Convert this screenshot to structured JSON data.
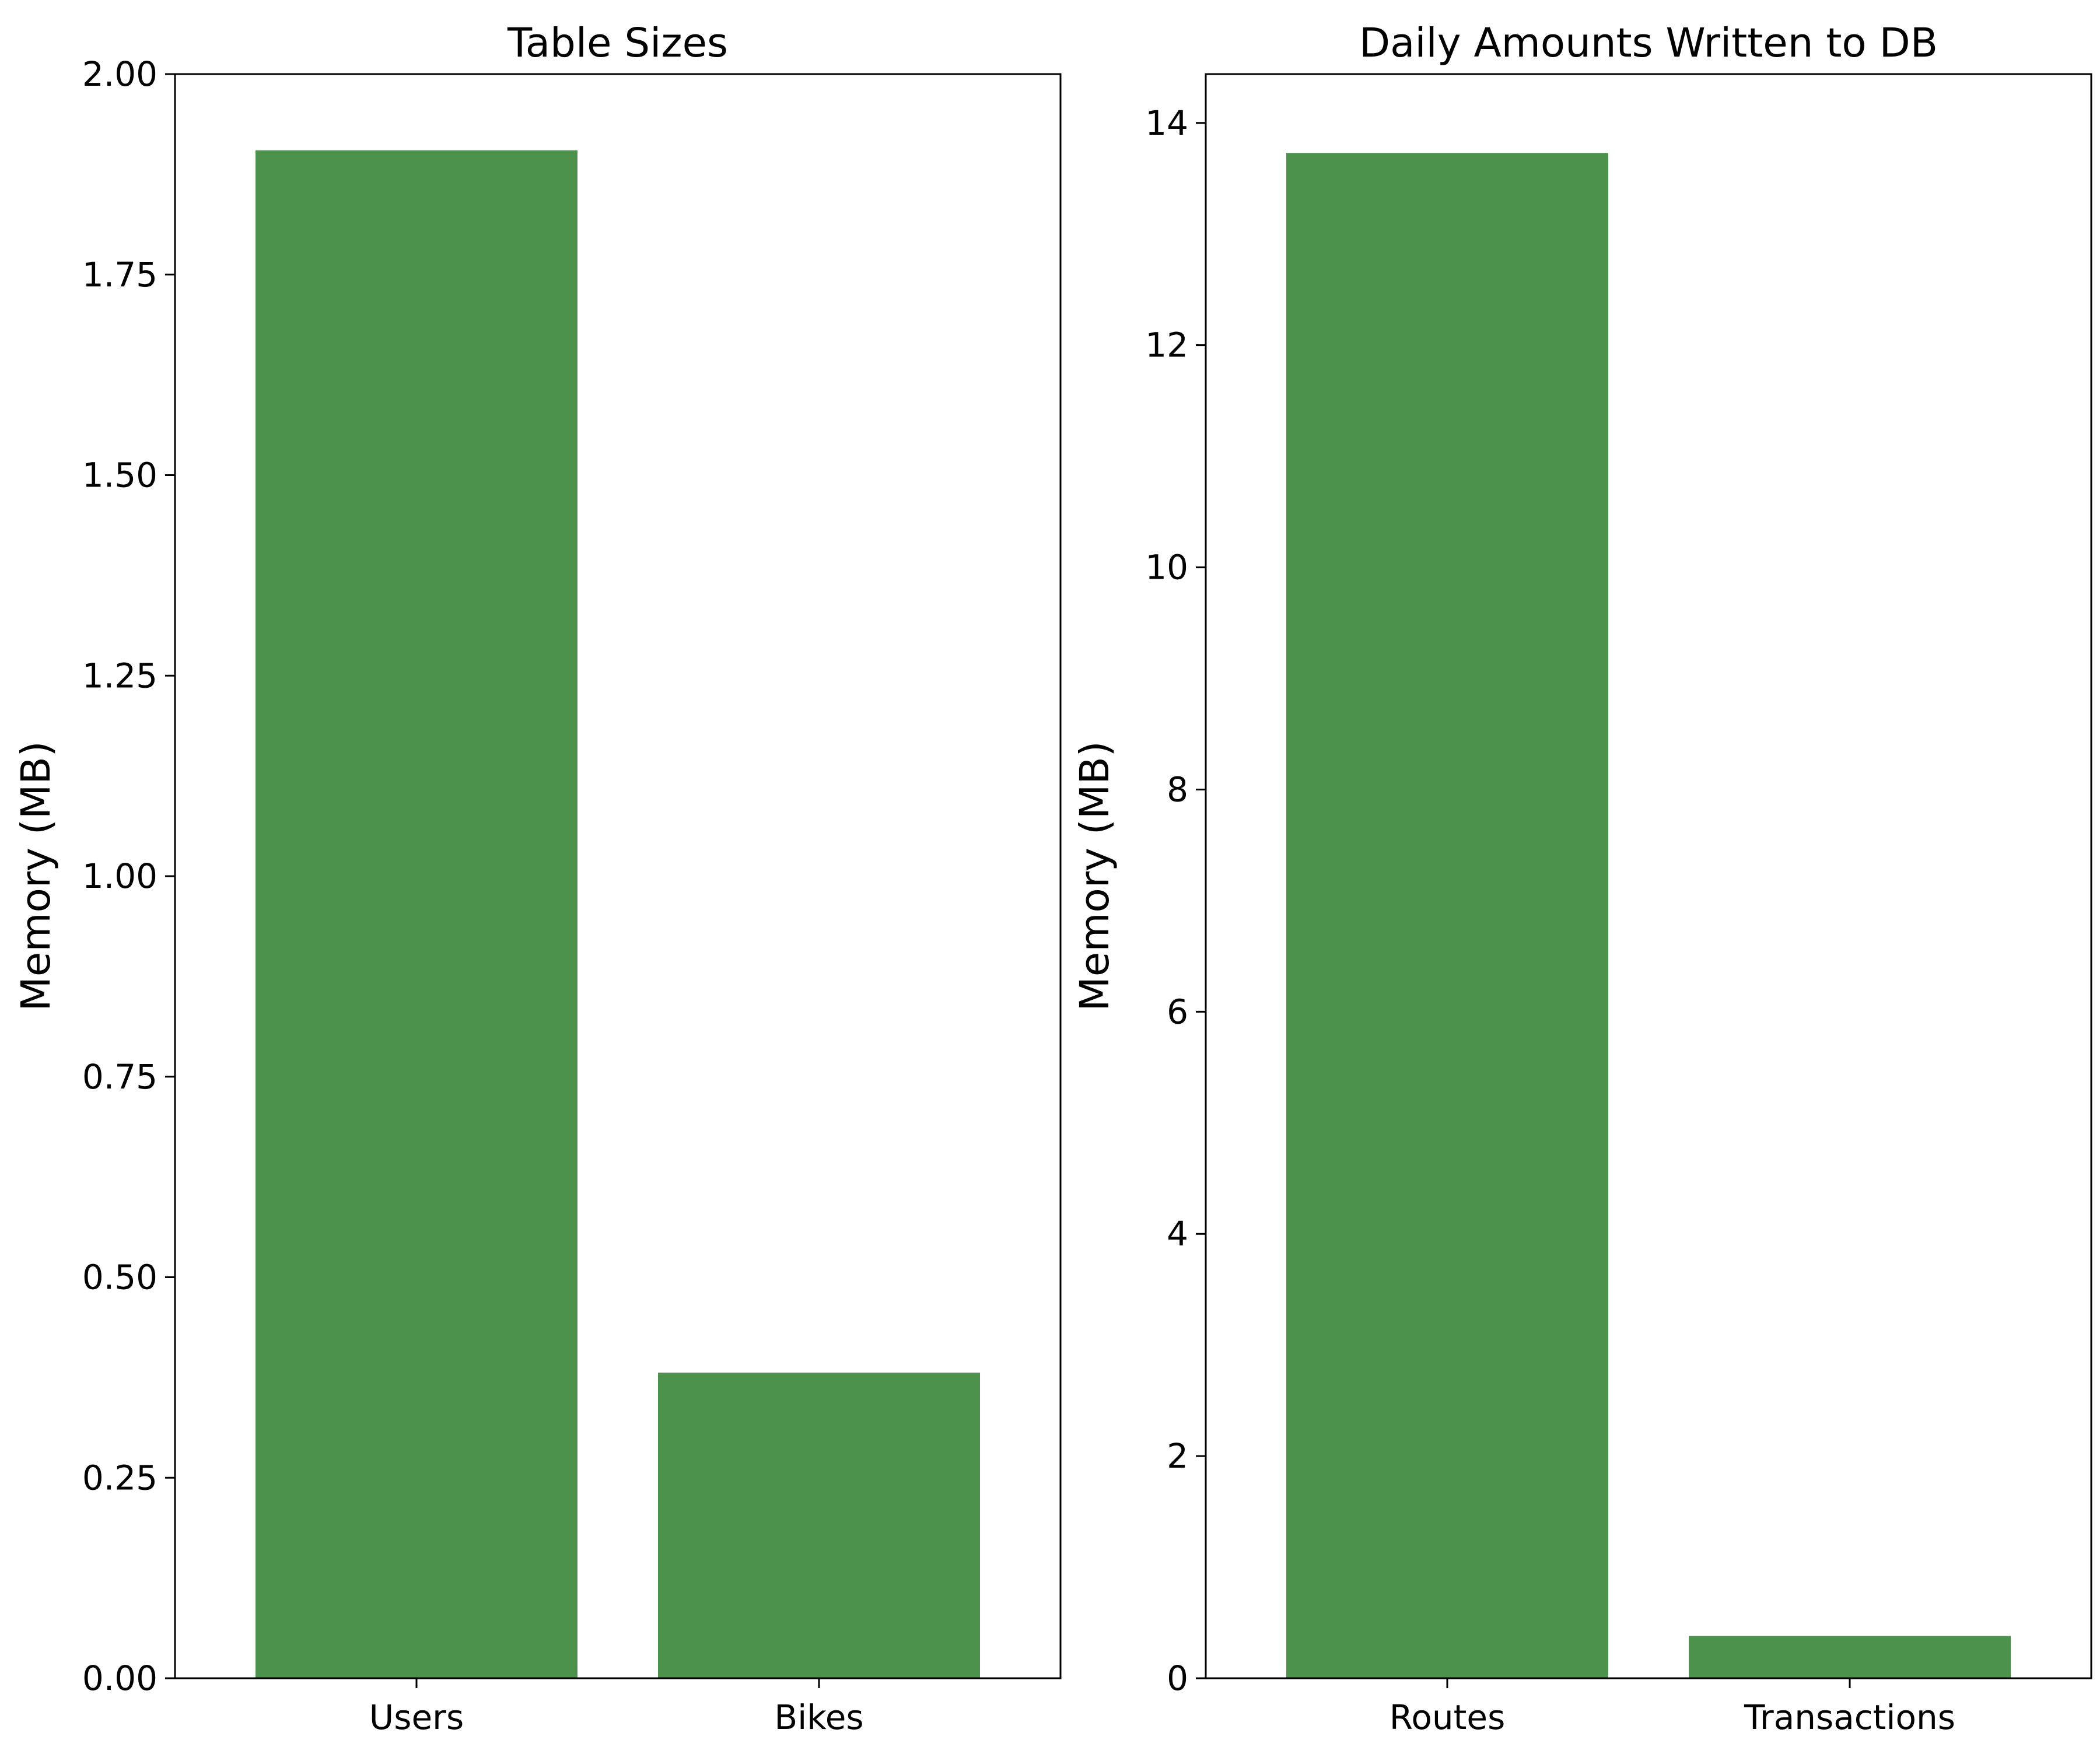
{
  "colors": {
    "bar": "#4c914c",
    "axis": "#000000",
    "background": "#ffffff"
  },
  "chart_data": [
    {
      "type": "bar",
      "title": "Table Sizes",
      "xlabel": "",
      "ylabel": "Memory (MB)",
      "categories": [
        "Users",
        "Bikes"
      ],
      "values": [
        1.905,
        0.381
      ],
      "ylim": [
        0,
        2.0
      ],
      "yticks": [
        "0.00",
        "0.25",
        "0.50",
        "0.75",
        "1.00",
        "1.25",
        "1.50",
        "1.75",
        "2.00"
      ],
      "grid": false
    },
    {
      "type": "bar",
      "title": "Daily Amounts Written to DB",
      "xlabel": "",
      "ylabel": "Memory (MB)",
      "categories": [
        "Routes",
        "Transactions"
      ],
      "values": [
        13.73,
        0.38
      ],
      "ylim": [
        0,
        14.44
      ],
      "yticks": [
        "0",
        "2",
        "4",
        "6",
        "8",
        "10",
        "12",
        "14"
      ],
      "grid": false
    }
  ]
}
